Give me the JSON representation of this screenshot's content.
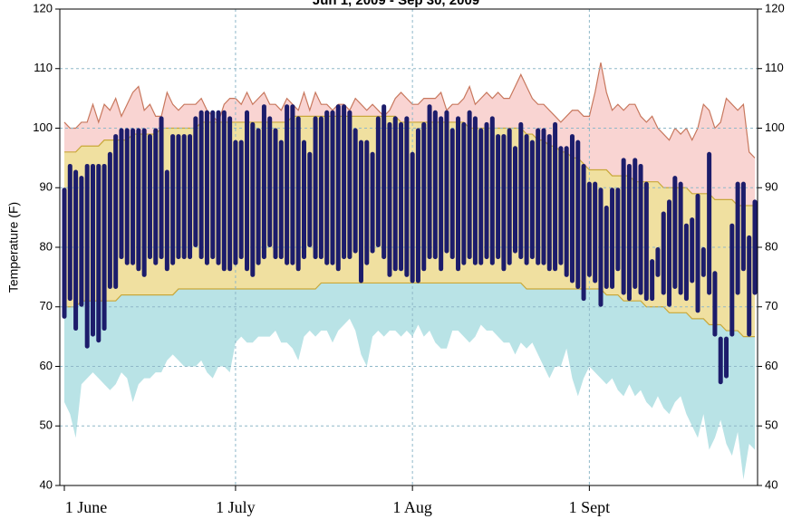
{
  "chart_data": {
    "type": "temperature-range",
    "title": "Jun 1, 2009 - Sep 30, 2009",
    "y_label": "Temperature (F)",
    "categories": [
      "1 June",
      null,
      null,
      null,
      null,
      null,
      null,
      null,
      null,
      null,
      null,
      null,
      null,
      null,
      null,
      null,
      null,
      null,
      null,
      null,
      null,
      null,
      null,
      null,
      null,
      null,
      null,
      null,
      null,
      null,
      "1 July",
      null,
      null,
      null,
      null,
      null,
      null,
      null,
      null,
      null,
      null,
      null,
      null,
      null,
      null,
      null,
      null,
      null,
      null,
      null,
      null,
      null,
      null,
      null,
      null,
      null,
      null,
      null,
      null,
      null,
      null,
      "1 Aug",
      null,
      null,
      null,
      null,
      null,
      null,
      null,
      null,
      null,
      null,
      null,
      null,
      null,
      null,
      null,
      null,
      null,
      null,
      null,
      null,
      null,
      null,
      null,
      null,
      null,
      null,
      null,
      null,
      null,
      null,
      "1 Sept",
      null,
      null,
      null,
      null,
      null,
      null,
      null,
      null,
      null,
      null,
      null,
      null,
      null,
      null,
      null,
      null,
      null,
      null,
      null,
      null,
      null,
      null,
      null,
      null,
      null,
      null,
      null,
      null,
      null
    ],
    "record_high": [
      101,
      100,
      100,
      101,
      101,
      104,
      101,
      104,
      103,
      105,
      102,
      104,
      106,
      107,
      103,
      104,
      102,
      102,
      106,
      104,
      103,
      104,
      104,
      104,
      105,
      103,
      102,
      101,
      104,
      105,
      105,
      104,
      106,
      104,
      105,
      106,
      104,
      104,
      103,
      105,
      104,
      103,
      106,
      103,
      106,
      104,
      104,
      103,
      104,
      104,
      103,
      105,
      104,
      103,
      104,
      103,
      102,
      103,
      105,
      106,
      105,
      104,
      104,
      105,
      105,
      105,
      106,
      103,
      104,
      104,
      105,
      107,
      104,
      105,
      106,
      105,
      106,
      105,
      105,
      107,
      109,
      107,
      105,
      104,
      104,
      103,
      102,
      101,
      102,
      103,
      103,
      102,
      102,
      106,
      111,
      106,
      103,
      104,
      103,
      104,
      104,
      102,
      101,
      102,
      100,
      99,
      98,
      100,
      99,
      100,
      98,
      100,
      104,
      103,
      100,
      101,
      105,
      104,
      103,
      104,
      96,
      95
    ],
    "normal_high": [
      96,
      96,
      96,
      97,
      97,
      97,
      97,
      98,
      98,
      98,
      98,
      98,
      99,
      99,
      99,
      99,
      99,
      100,
      100,
      100,
      100,
      100,
      100,
      100,
      101,
      101,
      101,
      101,
      101,
      101,
      101,
      101,
      101,
      101,
      101,
      101,
      101,
      101,
      101,
      101,
      102,
      102,
      102,
      102,
      102,
      102,
      102,
      102,
      102,
      102,
      102,
      102,
      102,
      102,
      102,
      102,
      102,
      102,
      102,
      101,
      101,
      101,
      101,
      101,
      101,
      101,
      101,
      101,
      101,
      101,
      101,
      100,
      100,
      100,
      100,
      100,
      100,
      100,
      100,
      100,
      100,
      99,
      99,
      98,
      98,
      97,
      97,
      96,
      96,
      95,
      95,
      94,
      93,
      93,
      93,
      93,
      92,
      92,
      92,
      92,
      91,
      91,
      91,
      91,
      91,
      90,
      90,
      90,
      90,
      90,
      89,
      89,
      89,
      89,
      88,
      88,
      88,
      88,
      87,
      87,
      87,
      87
    ],
    "normal_low": [
      70,
      70,
      70,
      71,
      71,
      71,
      71,
      71,
      71,
      71,
      72,
      72,
      72,
      72,
      72,
      72,
      72,
      72,
      72,
      72,
      73,
      73,
      73,
      73,
      73,
      73,
      73,
      73,
      73,
      73,
      73,
      73,
      73,
      73,
      73,
      73,
      73,
      73,
      73,
      73,
      73,
      73,
      73,
      73,
      73,
      74,
      74,
      74,
      74,
      74,
      74,
      74,
      74,
      74,
      74,
      74,
      74,
      74,
      74,
      74,
      74,
      74,
      74,
      74,
      74,
      74,
      74,
      74,
      74,
      74,
      74,
      74,
      74,
      74,
      74,
      74,
      74,
      74,
      74,
      74,
      74,
      73,
      73,
      73,
      73,
      73,
      73,
      73,
      73,
      73,
      73,
      73,
      73,
      73,
      73,
      72,
      72,
      72,
      71,
      71,
      71,
      71,
      70,
      70,
      70,
      70,
      69,
      69,
      69,
      69,
      68,
      68,
      68,
      67,
      67,
      67,
      66,
      66,
      66,
      65,
      65,
      65
    ],
    "record_low": [
      54,
      52,
      48,
      57,
      58,
      59,
      58,
      57,
      56,
      57,
      59,
      58,
      54,
      57,
      58,
      58,
      59,
      59,
      61,
      62,
      61,
      60,
      60,
      60,
      61,
      59,
      58,
      60,
      60,
      59,
      64,
      65,
      64,
      64,
      65,
      65,
      65,
      66,
      64,
      64,
      63,
      61,
      65,
      66,
      65,
      66,
      66,
      64,
      66,
      67,
      68,
      66,
      62,
      60,
      65,
      66,
      65,
      66,
      66,
      65,
      66,
      65,
      67,
      65,
      66,
      64,
      63,
      63,
      66,
      66,
      65,
      64,
      65,
      67,
      66,
      66,
      65,
      64,
      64,
      62,
      64,
      63,
      64,
      62,
      60,
      58,
      60,
      60,
      63,
      58,
      55,
      58,
      60,
      59,
      58,
      57,
      58,
      56,
      55,
      57,
      55,
      56,
      54,
      53,
      55,
      53,
      52,
      54,
      55,
      52,
      50,
      48,
      52,
      46,
      48,
      51,
      47,
      45,
      49,
      41,
      47,
      46
    ],
    "daily_high": [
      90,
      94,
      93,
      92,
      94,
      94,
      94,
      94,
      96,
      99,
      100,
      100,
      100,
      100,
      100,
      99,
      100,
      102,
      93,
      99,
      99,
      99,
      99,
      102,
      103,
      103,
      103,
      103,
      103,
      102,
      98,
      98,
      103,
      101,
      100,
      104,
      102,
      100,
      98,
      104,
      104,
      102,
      98,
      96,
      102,
      102,
      103,
      103,
      104,
      104,
      103,
      100,
      98,
      98,
      96,
      102,
      104,
      101,
      102,
      101,
      102,
      96,
      100,
      101,
      104,
      103,
      102,
      103,
      100,
      102,
      101,
      103,
      102,
      100,
      101,
      102,
      99,
      99,
      100,
      97,
      101,
      99,
      98,
      100,
      100,
      99,
      101,
      97,
      97,
      99,
      98,
      94,
      91,
      91,
      90,
      87,
      90,
      90,
      95,
      94,
      95,
      94,
      91,
      78,
      80,
      86,
      88,
      92,
      91,
      84,
      85,
      89,
      80,
      96,
      76,
      65,
      65,
      84,
      91,
      91,
      82,
      88
    ],
    "daily_low": [
      68,
      71,
      66,
      70,
      63,
      65,
      64,
      66,
      73,
      73,
      78,
      77,
      77,
      76,
      75,
      78,
      77,
      78,
      76,
      77,
      78,
      78,
      78,
      80,
      78,
      77,
      78,
      77,
      76,
      76,
      77,
      78,
      76,
      75,
      77,
      78,
      80,
      78,
      78,
      77,
      77,
      76,
      78,
      80,
      78,
      78,
      77,
      77,
      76,
      78,
      78,
      79,
      74,
      77,
      79,
      80,
      78,
      75,
      76,
      76,
      75,
      74,
      74,
      76,
      78,
      78,
      76,
      79,
      78,
      76,
      77,
      78,
      77,
      77,
      78,
      77,
      78,
      76,
      77,
      79,
      78,
      77,
      78,
      77,
      77,
      76,
      76,
      77,
      75,
      74,
      73,
      71,
      75,
      74,
      70,
      73,
      73,
      76,
      72,
      71,
      73,
      72,
      71,
      71,
      75,
      72,
      70,
      73,
      72,
      71,
      74,
      69,
      75,
      72,
      65,
      57,
      58,
      65,
      72,
      76,
      65,
      72
    ],
    "colors": {
      "record_high_fill": "#f9d4d2",
      "record_high_line": "#c8785e",
      "normal_fill": "#f0e0a0",
      "normal_line": "#c9a83a",
      "record_low_fill": "#b9e3e6",
      "bar": "#1c1c6b"
    },
    "ylim": [
      40,
      120
    ],
    "yticks": [
      40,
      50,
      60,
      70,
      80,
      90,
      100,
      110,
      120
    ],
    "grid": true
  }
}
